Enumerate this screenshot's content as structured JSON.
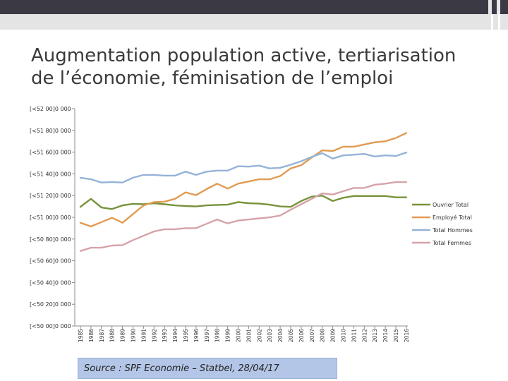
{
  "title_lines": [
    "Augmentation population active, tertiarisation",
    "de l’économie, féminisation de l’emploi"
  ],
  "source": "Source : SPF Economie – Statbel, 28/04/17",
  "chart_data": {
    "type": "line",
    "title": "Augmentation population active, tertiarisation de l’économie, féminisation de l’emploi",
    "xlabel": "",
    "ylabel": "",
    "ylim": [
      0,
      10
    ],
    "grid": false,
    "legend": "right",
    "y_tick_labels": [
      "[<50 00]0 000",
      "[<50 20]0 000",
      "[<50 40]0 000",
      "[<50 60]0 000",
      "[<50 80]0 000",
      "[<51 00]0 000",
      "[<51 20]0 000",
      "[<51 40]0 000",
      "[<51 60]0 000",
      "[<51 80]0 000",
      "[<52 00]0 000"
    ],
    "x": [
      "1985",
      "1986",
      "1987",
      "1988",
      "1989",
      "1990",
      "1991",
      "1992",
      "1993",
      "1994",
      "1995",
      "1996",
      "1997",
      "1998",
      "1999",
      "2000",
      "2001",
      "2002",
      "2003",
      "2004",
      "2005",
      "2006",
      "2007",
      "2008",
      "2009",
      "2010",
      "2011",
      "2012",
      "2013",
      "2014",
      "2015",
      "2016"
    ],
    "series": [
      {
        "name": "Ouvrier Total",
        "color": "#77933c",
        "values": [
          5.48,
          5.85,
          5.45,
          5.38,
          5.55,
          5.62,
          5.6,
          5.65,
          5.6,
          5.55,
          5.52,
          5.5,
          5.55,
          5.57,
          5.58,
          5.7,
          5.65,
          5.63,
          5.58,
          5.5,
          5.48,
          5.75,
          5.95,
          6.0,
          5.75,
          5.9,
          5.98,
          5.98,
          5.98,
          5.98,
          5.92,
          5.92
        ]
      },
      {
        "name": "Employé Total",
        "color": "#e19b52",
        "values": [
          4.75,
          4.58,
          4.78,
          4.98,
          4.75,
          5.15,
          5.55,
          5.7,
          5.72,
          5.85,
          6.15,
          6.02,
          6.3,
          6.55,
          6.32,
          6.55,
          6.65,
          6.75,
          6.75,
          6.9,
          7.25,
          7.4,
          7.75,
          8.08,
          8.05,
          8.25,
          8.25,
          8.35,
          8.45,
          8.5,
          8.65,
          8.88
        ]
      },
      {
        "name": "Total Hommes",
        "color": "#95b3d7",
        "values": [
          6.82,
          6.75,
          6.6,
          6.62,
          6.6,
          6.82,
          6.95,
          6.95,
          6.92,
          6.92,
          7.1,
          6.95,
          7.1,
          7.15,
          7.15,
          7.35,
          7.33,
          7.38,
          7.25,
          7.28,
          7.42,
          7.58,
          7.78,
          7.95,
          7.7,
          7.85,
          7.88,
          7.92,
          7.8,
          7.85,
          7.82,
          7.98
        ]
      },
      {
        "name": "Total Femmes",
        "color": "#d5a3a8",
        "values": [
          3.45,
          3.6,
          3.6,
          3.7,
          3.72,
          3.95,
          4.15,
          4.35,
          4.45,
          4.45,
          4.5,
          4.5,
          4.7,
          4.9,
          4.72,
          4.85,
          4.9,
          4.95,
          5.0,
          5.08,
          5.35,
          5.6,
          5.85,
          6.1,
          6.05,
          6.2,
          6.35,
          6.35,
          6.5,
          6.55,
          6.62,
          6.62
        ]
      }
    ]
  }
}
